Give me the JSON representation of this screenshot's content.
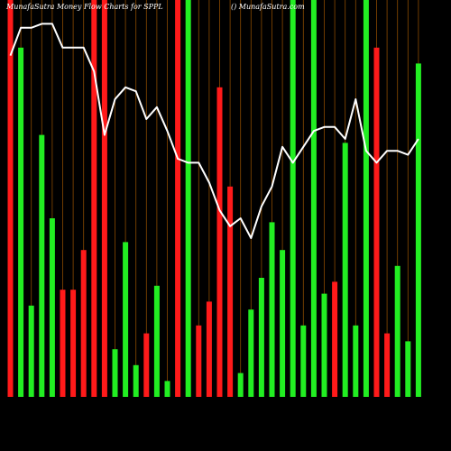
{
  "header": {
    "left": "MunafaSutra  Money Flow Charts for SPPL",
    "right": "() MunafaSutra.com"
  },
  "colors": {
    "background": "#000000",
    "up": "#22ee22",
    "down": "#ff1a1a",
    "grid": "#8a4a00",
    "line": "#ffffff"
  },
  "chart_data": {
    "type": "bar",
    "title": "MunafaSutra  Money Flow Charts for SPPL",
    "categories": [
      "",
      "",
      "",
      "",
      "",
      "",
      "",
      "",
      "",
      "",
      "",
      "",
      "",
      "",
      "",
      "",
      "",
      "",
      "",
      "",
      "",
      "",
      "",
      "",
      "",
      "",
      "",
      "",
      "",
      "",
      "",
      "",
      "",
      "",
      "",
      "",
      "",
      "",
      "",
      ""
    ],
    "series": [
      {
        "role": "money_flow_bars",
        "values": [
          100,
          88,
          23,
          66,
          45,
          27,
          27,
          37,
          100,
          100,
          12,
          39,
          8,
          16,
          28,
          4,
          100,
          100,
          18,
          24,
          78,
          53,
          6,
          22,
          30,
          44,
          37,
          100,
          18,
          100,
          26,
          29,
          64,
          18,
          100,
          88,
          16,
          33,
          14,
          84
        ],
        "colors": [
          "down",
          "up",
          "up",
          "up",
          "up",
          "down",
          "down",
          "down",
          "down",
          "down",
          "up",
          "up",
          "up",
          "down",
          "up",
          "up",
          "down",
          "up",
          "down",
          "down",
          "down",
          "down",
          "up",
          "up",
          "up",
          "up",
          "up",
          "up",
          "up",
          "up",
          "up",
          "down",
          "up",
          "up",
          "up",
          "down",
          "down",
          "up",
          "up",
          "up"
        ]
      },
      {
        "role": "flow_line",
        "values": [
          86,
          93,
          93,
          94,
          94,
          88,
          88,
          88,
          82,
          66,
          75,
          78,
          77,
          70,
          73,
          67,
          60,
          59,
          59,
          54,
          47,
          43,
          45,
          40,
          48,
          53,
          63,
          59,
          63,
          67,
          68,
          68,
          65,
          75,
          62,
          59,
          62,
          62,
          61,
          65
        ]
      }
    ],
    "ylim": [
      0,
      100
    ],
    "grid": true,
    "grid_orientation": "vertical"
  }
}
